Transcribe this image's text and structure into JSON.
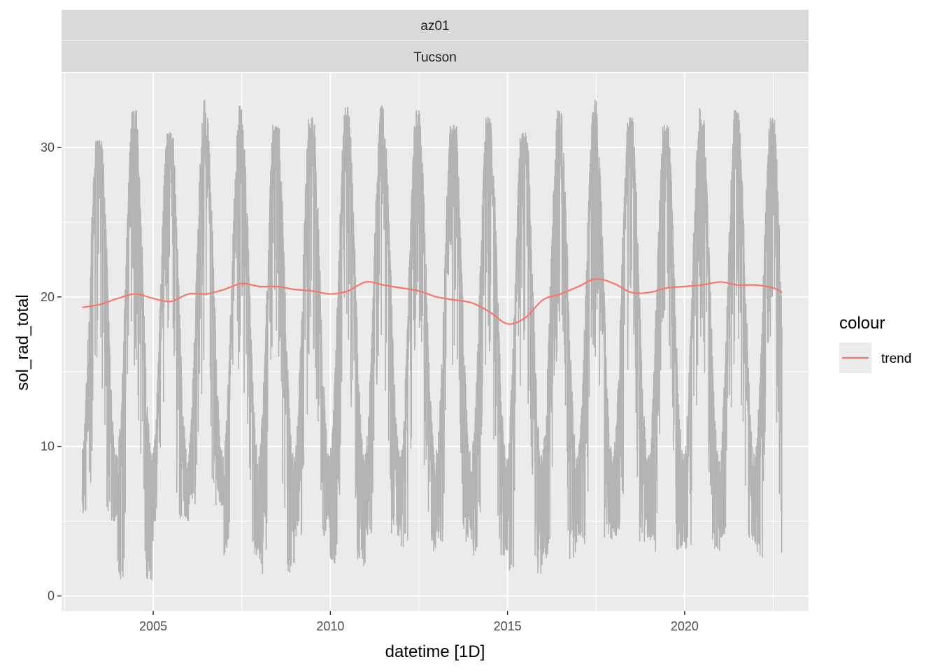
{
  "chart_data": {
    "type": "line",
    "facet_labels": [
      "az01",
      "Tucson"
    ],
    "xlabel": "datetime [1D]",
    "ylabel": "sol_rad_total",
    "x_ticks": [
      "2005",
      "2010",
      "2015",
      "2020"
    ],
    "y_ticks": [
      "0",
      "10",
      "20",
      "30"
    ],
    "xlim": [
      "2002-06-01",
      "2023-07-01"
    ],
    "ylim": [
      -1,
      35
    ],
    "grid": true,
    "legend": {
      "title": "colour",
      "placement": "right",
      "entries": [
        {
          "name": "trend",
          "color": "#F8766D"
        }
      ]
    },
    "colors": {
      "raw": "#b3b3b3",
      "trend": "#F8766D",
      "panel": "#ebebeb",
      "strip": "#d9d9d9"
    },
    "raw_series": {
      "name": "sol_rad_total",
      "x_start": "2003-01-01",
      "x_end": "2022-10-01",
      "seasonal_peak_month": 6,
      "annual_peaks": [
        30.5,
        32.5,
        31.0,
        33.2,
        32.8,
        31.5,
        32.0,
        32.8,
        33.0,
        32.5,
        31.5,
        32.0,
        31.0,
        32.5,
        33.2,
        32.0,
        31.5,
        32.8,
        32.5,
        32.0
      ],
      "annual_troughs": [
        5.0,
        1.0,
        5.0,
        6.0,
        2.5,
        1.5,
        4.0,
        2.0,
        4.0,
        3.0,
        3.5,
        2.5,
        1.5,
        2.5,
        3.5,
        3.5,
        3.0,
        3.0,
        3.5,
        2.5
      ],
      "y_min": 1.0,
      "y_max": 33.2
    },
    "series": [
      {
        "name": "trend",
        "x": [
          "2003-01-01",
          "2003-07-01",
          "2004-01-01",
          "2004-07-01",
          "2005-01-01",
          "2005-07-01",
          "2006-01-01",
          "2006-07-01",
          "2007-01-01",
          "2007-07-01",
          "2008-01-01",
          "2008-07-01",
          "2009-01-01",
          "2009-07-01",
          "2010-01-01",
          "2010-07-01",
          "2011-01-01",
          "2011-07-01",
          "2012-01-01",
          "2012-07-01",
          "2013-01-01",
          "2013-07-01",
          "2014-01-01",
          "2014-07-01",
          "2015-01-01",
          "2015-07-01",
          "2016-01-01",
          "2016-07-01",
          "2017-01-01",
          "2017-07-01",
          "2018-01-01",
          "2018-07-01",
          "2019-01-01",
          "2019-07-01",
          "2020-01-01",
          "2020-07-01",
          "2021-01-01",
          "2021-07-01",
          "2022-01-01",
          "2022-07-01",
          "2022-10-01"
        ],
        "values": [
          19.3,
          19.5,
          19.9,
          20.2,
          19.9,
          19.7,
          20.2,
          20.2,
          20.5,
          20.9,
          20.7,
          20.7,
          20.5,
          20.4,
          20.2,
          20.4,
          21.0,
          20.8,
          20.6,
          20.4,
          20.0,
          19.8,
          19.6,
          19.0,
          18.2,
          18.6,
          19.8,
          20.2,
          20.7,
          21.2,
          20.9,
          20.3,
          20.3,
          20.6,
          20.7,
          20.8,
          21.0,
          20.8,
          20.8,
          20.6,
          20.3
        ]
      }
    ]
  }
}
